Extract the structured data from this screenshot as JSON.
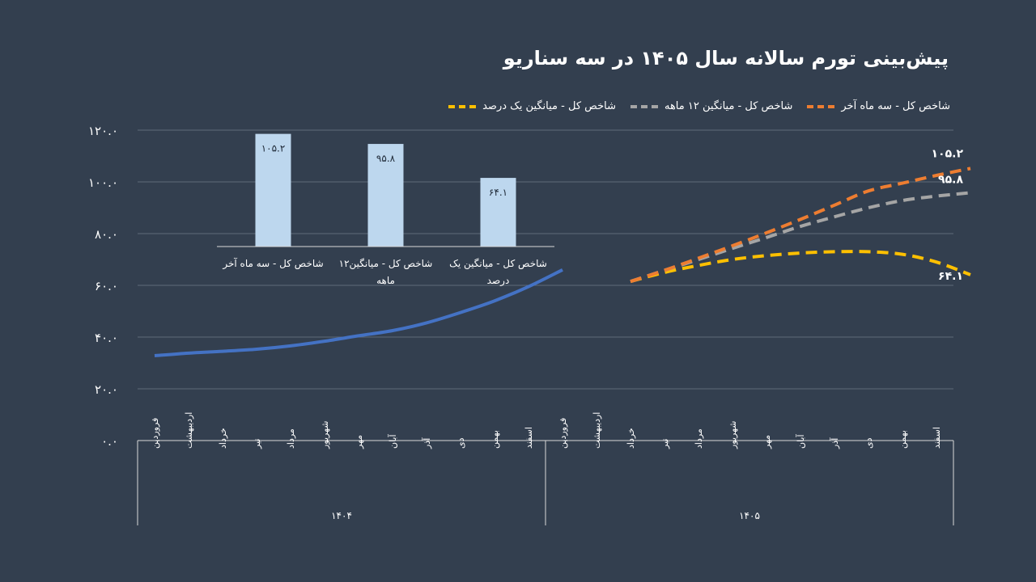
{
  "title": "پیش‌بینی تورم سالانه سال ۱۴۰۵ در سه سناریو",
  "legend": [
    {
      "label": "شاخص کل - سه ماه آخر",
      "color": "#ed7d31"
    },
    {
      "label": "شاخص کل - میانگین ۱۲ ماهه",
      "color": "#a5a5a5"
    },
    {
      "label": "شاخص کل - میانگین یک درصد",
      "color": "#ffc000"
    }
  ],
  "chart_data": {
    "type": "line",
    "title": "پیش‌بینی تورم سالانه سال ۱۴۰۵ در سه سناریو",
    "ylim": [
      0,
      120
    ],
    "y_ticks": [
      "۰.۰",
      "۲۰.۰",
      "۴۰.۰",
      "۶۰.۰",
      "۸۰.۰",
      "۱۰۰.۰",
      "۱۲۰.۰"
    ],
    "years": [
      {
        "label": "۱۴۰۴",
        "months": [
          "فروردین",
          "اردیبهشت",
          "خرداد",
          "تیر",
          "مرداد",
          "شهریور",
          "مهر",
          "آبان",
          "آذر",
          "دی",
          "بهمن",
          "اسفند"
        ]
      },
      {
        "label": "۱۴۰۵",
        "months": [
          "فروردین",
          "اردیبهشت",
          "خرداد",
          "تیر",
          "مرداد",
          "شهریور",
          "مهر",
          "آبان",
          "آذر",
          "دی",
          "بهمن",
          "اسفند"
        ]
      }
    ],
    "series": [
      {
        "name": "",
        "color": "#4472c4",
        "dashed": false,
        "start_index": 0,
        "values": [
          32.8,
          33.8,
          34.5,
          35.3,
          36.6,
          38.4,
          40.5,
          42.5,
          45.5,
          49.5,
          54,
          59.5,
          66
        ]
      },
      {
        "name": "شاخص کل - سه ماه آخر",
        "color": "#ed7d31",
        "dashed": true,
        "start_index": 14,
        "values": [
          61.5,
          65.8,
          70.5,
          75.3,
          80.3,
          85.5,
          91,
          96.5,
          99.5,
          102.5,
          105.2
        ]
      },
      {
        "name": "شاخص کل - میانگین ۱۲ ماهه",
        "color": "#a5a5a5",
        "dashed": true,
        "start_index": 14,
        "values": [
          61.5,
          65.8,
          70,
          74.3,
          78.5,
          82.8,
          86.5,
          90,
          92.8,
          94.5,
          95.8
        ]
      },
      {
        "name": "شاخص کل - میانگین یک درصد",
        "color": "#ffc000",
        "dashed": true,
        "start_index": 14,
        "values": [
          61.5,
          65,
          67.7,
          70,
          71.5,
          72.5,
          73,
          73,
          72,
          69,
          64.1
        ]
      }
    ],
    "end_labels": [
      "۱۰۵.۲",
      "۹۵.۸",
      "۶۴.۱"
    ],
    "inset": {
      "type": "bar",
      "color": "#bdd7ee",
      "ylim": [
        0,
        120
      ],
      "categories": [
        "شاخص کل - سه ماه آخر",
        "شاخص کل - میانگین۱۲ ماهه",
        "شاخص کل - میانگین یک درصد"
      ],
      "values": [
        105.2,
        95.8,
        64.1
      ],
      "labels": [
        "۱۰۵.۲",
        "۹۵.۸",
        "۶۴.۱"
      ]
    }
  }
}
